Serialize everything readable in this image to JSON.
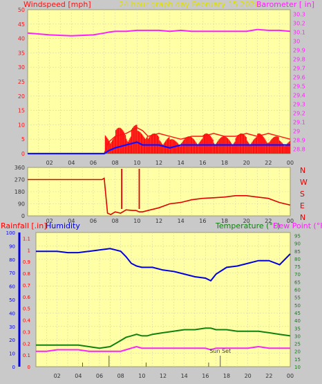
{
  "header": {
    "left_title": "Windspeed [mph]",
    "center_title": "24 hour graph day    February 15 2026",
    "right_title": "Barometer [ in]"
  },
  "colors": {
    "background": "#c9c9c9",
    "plot_bg": "#ffffa6",
    "grid": "#d8d8aa",
    "wind": "#ff1010",
    "wind_avg": "#1010ff",
    "wind_low": "#108010",
    "barometer": "#ff20ff",
    "direction": "#e00000",
    "humidity": "#0000e0",
    "temperature": "#108010",
    "dewpoint": "#ff20ff",
    "rain": "#ff0000",
    "center_title": "#e0e000"
  },
  "x_ticks": [
    "02",
    "04",
    "06",
    "08",
    "10",
    "12",
    "14",
    "16",
    "18",
    "20",
    "22",
    "00"
  ],
  "chart_data": [
    {
      "type": "line",
      "name": "wind_barometer",
      "x_hours": [
        0,
        2,
        4,
        6,
        7,
        7.4,
        8,
        9,
        10,
        10.5,
        11,
        12,
        13,
        14,
        15,
        16,
        17,
        18,
        19,
        20,
        21,
        22,
        23,
        24
      ],
      "series": [
        {
          "name": "Windspeed [mph]",
          "axis": "left",
          "values": [
            0,
            0,
            0,
            0,
            0,
            4,
            6,
            7,
            9,
            8,
            6,
            7,
            6,
            5,
            6,
            6,
            7,
            6,
            6,
            7,
            6,
            7,
            6,
            5
          ]
        },
        {
          "name": "Windspeed average",
          "axis": "left",
          "values": [
            0,
            0,
            0,
            0,
            0,
            1,
            2,
            3,
            4,
            3,
            3,
            3,
            2,
            3,
            3,
            3,
            3,
            3,
            3,
            3,
            3,
            3,
            3,
            3
          ]
        },
        {
          "name": "Barometer [ in]",
          "axis": "right",
          "values": [
            30.09,
            30.07,
            30.06,
            30.07,
            30.09,
            30.1,
            30.11,
            30.11,
            30.12,
            30.12,
            30.12,
            30.12,
            30.11,
            30.12,
            30.11,
            30.11,
            30.11,
            30.11,
            30.11,
            30.11,
            30.13,
            30.12,
            30.12,
            30.11
          ]
        }
      ],
      "left_axis": {
        "ticks": [
          "0",
          "5",
          "10",
          "15",
          "20",
          "25",
          "30",
          "35",
          "40",
          "45",
          "50"
        ],
        "range": [
          0,
          50
        ]
      },
      "right_axis": {
        "ticks": [
          "28.8",
          "28.9",
          "29",
          "29.1",
          "29.2",
          "29.3",
          "29.4",
          "29.5",
          "29.6",
          "29.7",
          "29.8",
          "29.9",
          "30",
          "30.1",
          "30.2",
          "30.3"
        ],
        "range": [
          28.75,
          30.35
        ]
      },
      "grid": true
    },
    {
      "type": "line",
      "name": "wind_direction",
      "x_hours": [
        0,
        1,
        2,
        3,
        4,
        5,
        6,
        6.8,
        7,
        7.3,
        7.6,
        8,
        8.5,
        9,
        9.6,
        9.9,
        10.2,
        10.5,
        11,
        12,
        13,
        14,
        15,
        16,
        17,
        18,
        19,
        20,
        21,
        22,
        23,
        24
      ],
      "series": [
        {
          "name": "Wind direction",
          "values": [
            270,
            270,
            270,
            270,
            270,
            270,
            270,
            270,
            280,
            20,
            10,
            30,
            20,
            45,
            40,
            40,
            30,
            30,
            40,
            60,
            90,
            100,
            120,
            130,
            135,
            140,
            150,
            150,
            140,
            130,
            100,
            80
          ]
        }
      ],
      "left_axis": {
        "ticks": [
          "0",
          "90",
          "180",
          "270",
          "360"
        ],
        "range": [
          0,
          360
        ]
      },
      "right_labels": [
        "N",
        "W",
        "S",
        "E",
        "N"
      ],
      "grid": true
    },
    {
      "type": "line",
      "name": "rain_humidity_temp",
      "titles": {
        "rainfall": "Rainfall [.in]",
        "humidity": "Humidity",
        "temperature": "Temperature (°F)",
        "dewpoint": "Dew Point (°F)"
      },
      "x_hours": [
        0,
        1,
        2,
        3,
        4,
        5,
        6,
        7,
        7.5,
        8,
        8.5,
        9,
        9.5,
        10,
        10.5,
        11,
        12,
        13,
        14,
        15,
        16,
        16.5,
        17,
        18,
        19,
        20,
        21,
        22,
        23,
        24
      ],
      "series": [
        {
          "name": "Humidity",
          "axis": "humidity",
          "values": [
            86,
            86,
            86,
            85,
            85,
            86,
            87,
            88,
            87,
            86,
            82,
            77,
            75,
            74,
            74,
            74,
            72,
            71,
            69,
            67,
            66,
            64,
            69,
            74,
            75,
            77,
            79,
            79,
            76,
            84
          ]
        },
        {
          "name": "Temperature (°F)",
          "axis": "temp",
          "values": [
            24,
            24,
            24,
            24,
            24,
            23,
            22,
            23,
            25,
            27,
            29,
            30,
            31,
            30,
            30,
            31,
            32,
            33,
            34,
            34,
            35,
            35,
            34,
            34,
            33,
            33,
            33,
            32,
            31,
            30
          ]
        },
        {
          "name": "Dew Point (°F)",
          "axis": "temp",
          "values": [
            20,
            20,
            21,
            21,
            21,
            20,
            20,
            20,
            20,
            20,
            21,
            22,
            23,
            22,
            22,
            22,
            22,
            22,
            22,
            22,
            22,
            21,
            22,
            22,
            22,
            22,
            23,
            22,
            22,
            22
          ]
        },
        {
          "name": "Rainfall [.in]",
          "axis": "rain",
          "values": [
            0,
            0,
            0,
            0,
            0,
            0,
            0,
            0,
            0,
            0,
            0,
            0,
            0,
            0,
            0,
            0,
            0,
            0,
            0,
            0,
            0,
            0,
            0,
            0,
            0,
            0,
            0,
            0,
            0,
            0
          ]
        }
      ],
      "humidity_axis": {
        "ticks": [
          "0",
          "10",
          "20",
          "30",
          "40",
          "50",
          "60",
          "70",
          "80",
          "90",
          "100"
        ],
        "range": [
          0,
          100
        ]
      },
      "rain_axis": {
        "ticks": [
          "0",
          "0.1",
          "0.2",
          "0.3",
          "0.4",
          "0.5",
          "0.6",
          "0.7",
          "0.8",
          "0.9",
          "1",
          "1.1"
        ],
        "range": [
          0,
          1.15
        ]
      },
      "temp_axis": {
        "ticks": [
          "10",
          "15",
          "20",
          "25",
          "30",
          "35",
          "40",
          "45",
          "50",
          "55",
          "60",
          "65",
          "70",
          "75",
          "80",
          "85",
          "90",
          "95"
        ],
        "range": [
          10,
          97
        ]
      },
      "annotations": [
        {
          "text": "Sun Set",
          "x_hour": 17.4
        }
      ],
      "grid": true
    }
  ]
}
